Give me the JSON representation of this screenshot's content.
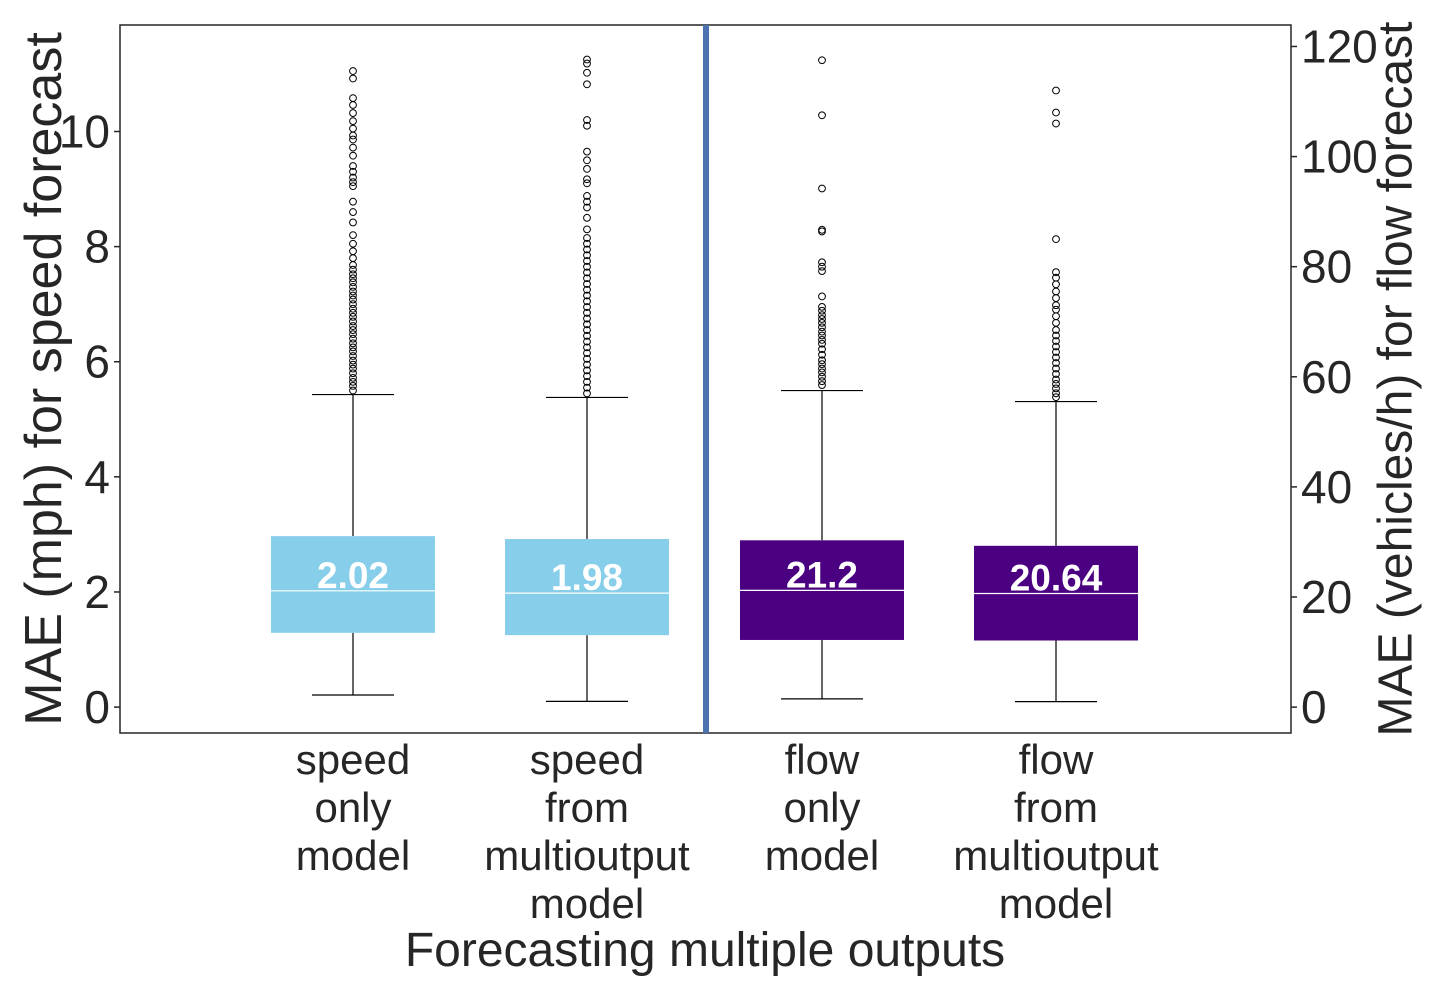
{
  "chart_data": {
    "type": "box",
    "xlabel": "Forecasting multiple outputs",
    "ylabel_left": "MAE (mph) for speed forecast",
    "ylabel_right": "MAE (vehicles/h) for flow forecast",
    "ylim_left": [
      -0.45,
      11.85
    ],
    "ylim_right": [
      -4.7,
      123.9
    ],
    "yticks_left": [
      0,
      2,
      4,
      6,
      8,
      10
    ],
    "yticks_right": [
      0,
      20,
      40,
      60,
      80,
      100,
      120
    ],
    "grid": false,
    "divider_color": "#4c72b0",
    "categories": [
      {
        "label_lines": [
          "speed",
          "only",
          "model"
        ],
        "axis": "left"
      },
      {
        "label_lines": [
          "speed",
          "from",
          "multioutput",
          "model"
        ],
        "axis": "left"
      },
      {
        "label_lines": [
          "flow",
          "only",
          "model"
        ],
        "axis": "right"
      },
      {
        "label_lines": [
          "flow",
          "from",
          "multioutput",
          "model"
        ],
        "axis": "right"
      }
    ],
    "series": [
      {
        "category": 0,
        "axis": "left",
        "color": "#87ceeb",
        "whisker_low": 0.21,
        "q1": 1.29,
        "median": 2.02,
        "q3": 2.97,
        "whisker_high": 5.43,
        "annotation": "2.02",
        "outliers": [
          11.05,
          10.92,
          10.58,
          10.46,
          10.32,
          10.18,
          10.05,
          9.93,
          9.86,
          9.72,
          9.58,
          9.4,
          9.3,
          9.2,
          9.12,
          9.05,
          8.78,
          8.6,
          8.42,
          8.2,
          8.05,
          7.92,
          7.8,
          7.68,
          7.6,
          7.52,
          7.45,
          7.38,
          7.3,
          7.22,
          7.15,
          7.08,
          7.0,
          6.92,
          6.85,
          6.78,
          6.7,
          6.62,
          6.55,
          6.48,
          6.4,
          6.32,
          6.25,
          6.18,
          6.1,
          6.02,
          5.95,
          5.88,
          5.8,
          5.72,
          5.65,
          5.58,
          5.5
        ]
      },
      {
        "category": 1,
        "axis": "left",
        "color": "#87ceeb",
        "whisker_low": 0.1,
        "q1": 1.25,
        "median": 1.98,
        "q3": 2.92,
        "whisker_high": 5.38,
        "annotation": "1.98",
        "outliers": [
          11.25,
          11.18,
          11.02,
          10.82,
          10.2,
          10.1,
          9.65,
          9.5,
          9.35,
          9.17,
          9.1,
          8.88,
          8.78,
          8.68,
          8.5,
          8.3,
          8.15,
          8.05,
          7.95,
          7.85,
          7.75,
          7.65,
          7.55,
          7.45,
          7.35,
          7.25,
          7.15,
          7.05,
          6.95,
          6.85,
          6.75,
          6.65,
          6.55,
          6.45,
          6.35,
          6.25,
          6.15,
          6.05,
          5.95,
          5.85,
          5.75,
          5.65,
          5.55,
          5.45
        ]
      },
      {
        "category": 2,
        "axis": "right",
        "color": "#4b0082",
        "whisker_low": 1.5,
        "q1": 12.2,
        "median": 21.2,
        "q3": 30.3,
        "whisker_high": 57.5,
        "annotation": "21.2",
        "outliers": [
          117.5,
          107.5,
          94.2,
          86.7,
          86.4,
          80.8,
          80.0,
          79.2,
          74.6,
          72.7,
          72.0,
          71.2,
          70.5,
          69.8,
          69.0,
          68.2,
          67.5,
          66.7,
          66.0,
          65.0,
          64.0,
          63.0,
          62.3,
          61.5,
          60.8,
          60.0,
          59.2,
          58.5
        ]
      },
      {
        "category": 3,
        "axis": "right",
        "color": "#4b0082",
        "whisker_low": 1.0,
        "q1": 12.1,
        "median": 20.64,
        "q3": 29.3,
        "whisker_high": 55.5,
        "annotation": "20.64",
        "outliers": [
          112.0,
          108.0,
          106.0,
          85.0,
          79.0,
          78.0,
          76.8,
          75.5,
          74.3,
          73.0,
          72.2,
          71.0,
          69.8,
          68.5,
          67.5,
          66.5,
          65.5,
          64.5,
          63.5,
          62.5,
          61.5,
          60.5,
          59.5,
          58.7,
          57.9,
          57.0,
          56.3
        ]
      }
    ]
  }
}
